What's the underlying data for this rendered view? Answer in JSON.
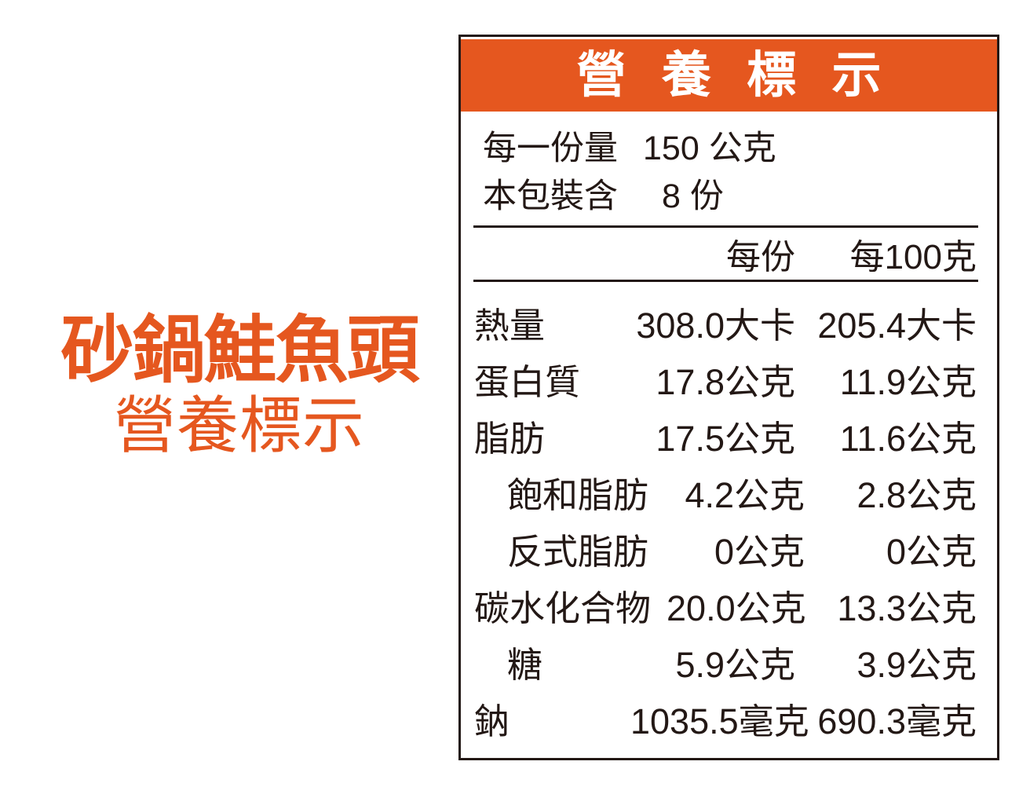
{
  "colors": {
    "accent_orange": "#E5571F",
    "text_dark": "#231815"
  },
  "left_title": {
    "product_name": "砂鍋鮭魚頭",
    "subtitle": "營養標示"
  },
  "label_panel": {
    "header_title": "營養標示",
    "serving_info": [
      {
        "label": "每一份量",
        "value": "150 公克"
      },
      {
        "label": "本包裝含",
        "value": "8 份"
      }
    ],
    "column_headers": {
      "per_serving": "每份",
      "per_100g": "每100克"
    },
    "rows": [
      {
        "label": "熱量",
        "per_serving": "308.0大卡",
        "per_100g": "205.4大卡",
        "indent": false
      },
      {
        "label": "蛋白質",
        "per_serving": "17.8公克",
        "per_100g": "11.9公克",
        "indent": false
      },
      {
        "label": "脂肪",
        "per_serving": "17.5公克",
        "per_100g": "11.6公克",
        "indent": false
      },
      {
        "label": "飽和脂肪",
        "per_serving": "4.2公克",
        "per_100g": "2.8公克",
        "indent": true
      },
      {
        "label": "反式脂肪",
        "per_serving": "0公克",
        "per_100g": "0公克",
        "indent": true
      },
      {
        "label": "碳水化合物",
        "per_serving": "20.0公克",
        "per_100g": "13.3公克",
        "indent": false
      },
      {
        "label": "糖",
        "per_serving": "5.9公克",
        "per_100g": "3.9公克",
        "indent": true
      },
      {
        "label": "鈉",
        "per_serving": "1035.5毫克",
        "per_100g": "690.3毫克",
        "indent": false
      }
    ]
  }
}
